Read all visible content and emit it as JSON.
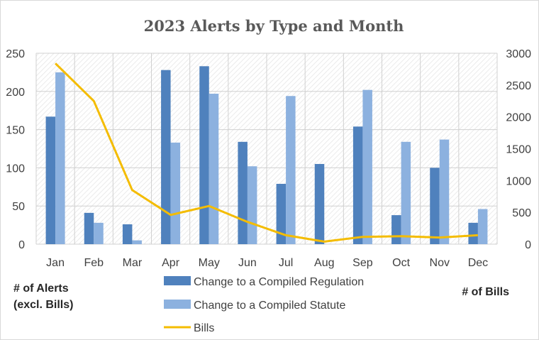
{
  "chart_data": {
    "type": "bar",
    "title": "2023 Alerts by Type and Month",
    "categories": [
      "Jan",
      "Feb",
      "Mar",
      "Apr",
      "May",
      "Jun",
      "Jul",
      "Aug",
      "Sep",
      "Oct",
      "Nov",
      "Dec"
    ],
    "series": [
      {
        "name": "Change to a Compiled Regulation",
        "type": "bar",
        "axis": "left",
        "color": "#4f81bd",
        "values": [
          167,
          41,
          26,
          228,
          233,
          134,
          79,
          105,
          154,
          38,
          100,
          28
        ]
      },
      {
        "name": "Change to a Compiled Statute",
        "type": "bar",
        "axis": "left",
        "color": "#8cb1df",
        "values": [
          225,
          28,
          5,
          133,
          197,
          102,
          194,
          0,
          202,
          134,
          137,
          46
        ]
      },
      {
        "name": "Bills",
        "type": "line",
        "axis": "right",
        "color": "#f4bc00",
        "values": [
          2840,
          2250,
          850,
          460,
          600,
          350,
          140,
          40,
          115,
          125,
          105,
          140
        ]
      }
    ],
    "yleft": {
      "label_lines": [
        "# of Alerts",
        "(excl. Bills)"
      ],
      "ylim": [
        0,
        250
      ],
      "ticks": [
        0,
        50,
        100,
        150,
        200,
        250
      ]
    },
    "yright": {
      "label": "# of Bills",
      "ylim": [
        0,
        3000
      ],
      "ticks": [
        0,
        500,
        1000,
        1500,
        2000,
        2500,
        3000
      ]
    },
    "grid": true,
    "legend_position": "bottom"
  }
}
